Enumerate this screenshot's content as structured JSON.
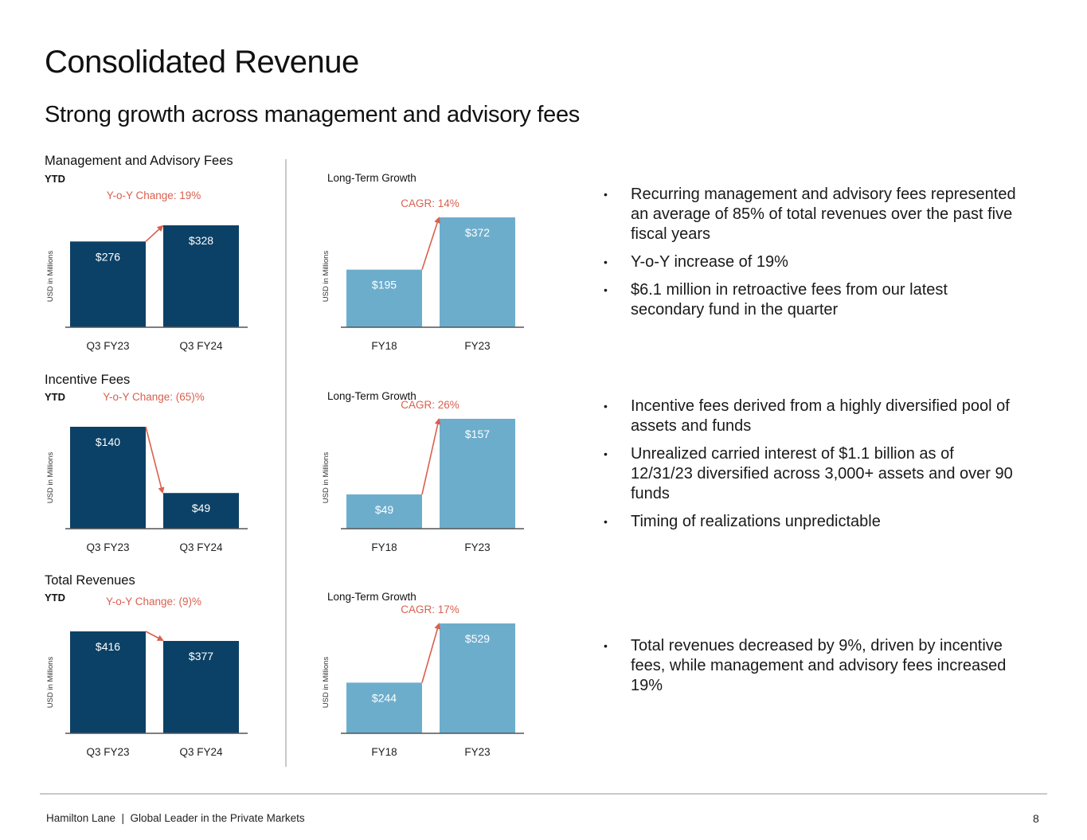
{
  "header": {
    "title": "Consolidated Revenue",
    "subtitle": "Strong growth across management and advisory fees"
  },
  "colors": {
    "ytd_bar": "#0b4166",
    "long_term_bar": "#6dadcc",
    "annotation": "#d9604f",
    "axis": "#555555",
    "bar_label": "#ffffff"
  },
  "chart_data": [
    {
      "type": "bar",
      "id": "mgmt-ytd",
      "title": "Management and Advisory Fees",
      "subtitle": "YTD",
      "ylabel": "USD in Millions",
      "categories": [
        "Q3 FY23",
        "Q3 FY24"
      ],
      "values": [
        276,
        328
      ],
      "data_labels": [
        "$276",
        "$328"
      ],
      "annotation": "Y-o-Y Change: 19%",
      "ylim": [
        0,
        328
      ]
    },
    {
      "type": "bar",
      "id": "mgmt-lt",
      "title": "Long-Term Growth",
      "subtitle": "",
      "ylabel": "USD in Millions",
      "categories": [
        "FY18",
        "FY23"
      ],
      "values": [
        195,
        372
      ],
      "data_labels": [
        "$195",
        "$372"
      ],
      "annotation": "CAGR: 14%",
      "ylim": [
        0,
        372
      ]
    },
    {
      "type": "bar",
      "id": "incentive-ytd",
      "title": "Incentive Fees",
      "subtitle": "YTD",
      "ylabel": "USD in Millions",
      "categories": [
        "Q3 FY23",
        "Q3 FY24"
      ],
      "values": [
        140,
        49
      ],
      "data_labels": [
        "$140",
        "$49"
      ],
      "annotation": "Y-o-Y Change: (65)%",
      "ylim": [
        0,
        140
      ]
    },
    {
      "type": "bar",
      "id": "incentive-lt",
      "title": "Long-Term Growth",
      "subtitle": "",
      "ylabel": "USD in Millions",
      "categories": [
        "FY18",
        "FY23"
      ],
      "values": [
        49,
        157
      ],
      "data_labels": [
        "$49",
        "$157"
      ],
      "annotation": "CAGR: 26%",
      "ylim": [
        0,
        157
      ]
    },
    {
      "type": "bar",
      "id": "total-ytd",
      "title": "Total Revenues",
      "subtitle": "YTD",
      "ylabel": "USD in Millions",
      "categories": [
        "Q3 FY23",
        "Q3 FY24"
      ],
      "values": [
        416,
        377
      ],
      "data_labels": [
        "$416",
        "$377"
      ],
      "annotation": "Y-o-Y Change: (9)%",
      "ylim": [
        0,
        416
      ]
    },
    {
      "type": "bar",
      "id": "total-lt",
      "title": "Long-Term Growth",
      "subtitle": "",
      "ylabel": "USD in Millions",
      "categories": [
        "FY18",
        "FY23"
      ],
      "values": [
        244,
        529
      ],
      "data_labels": [
        "$244",
        "$529"
      ],
      "annotation": "CAGR: 17%",
      "ylim": [
        0,
        529
      ]
    }
  ],
  "bullets": {
    "management": [
      "Recurring management and advisory fees represented an average of 85% of total revenues over the past five fiscal years",
      "Y-o-Y increase of 19%",
      "$6.1 million in retroactive fees from our latest secondary fund in the quarter"
    ],
    "incentive": [
      "Incentive fees derived from a highly diversified pool of assets and funds",
      "Unrealized carried interest of $1.1 billion as of 12/31/23 diversified across 3,000+ assets and over 90 funds",
      "Timing of realizations unpredictable"
    ],
    "total": [
      "Total revenues decreased by 9%, driven by incentive fees, while management and advisory fees increased 19%"
    ],
    "bullet_glyph": "•"
  },
  "footer": {
    "text": "Hamilton Lane  |  Global Leader in the Private Markets",
    "page_number": "8"
  }
}
